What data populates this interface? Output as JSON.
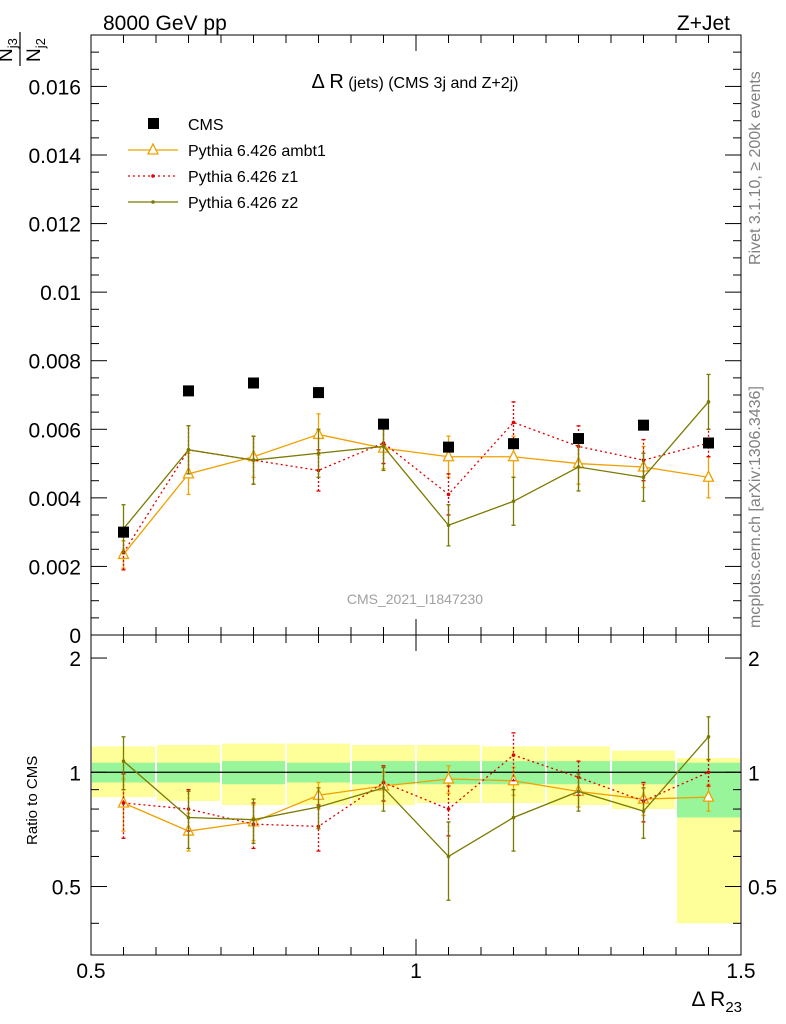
{
  "header": {
    "energy_label": "8000 GeV pp",
    "process_label": "Z+Jet"
  },
  "side_labels": {
    "rivet": "Rivet 3.1.10, ≥ 200k events",
    "mcplots": "mcplots.cern.ch [arXiv:1306.3436]"
  },
  "watermark": "CMS_2021_I1847230",
  "colors": {
    "cms": "#000000",
    "ambt1": "#f0a000",
    "z1": "#e00000",
    "z2": "#7a7a00",
    "band_inner": "#99f599",
    "band_outer": "#ffff99"
  },
  "chart_data": [
    {
      "type": "scatter",
      "title_main": "Δ R",
      "title_rest": "(jets) (CMS 3j and Z+2j)",
      "ylabel_num": "N",
      "ylabel_num_sub": "j3",
      "ylabel_den": "N",
      "ylabel_den_sub": "j2",
      "xlim": [
        0.5,
        1.5
      ],
      "ylim": [
        0,
        0.0175
      ],
      "y_ticks": [
        0,
        0.002,
        0.004,
        0.006,
        0.008,
        0.01,
        0.012,
        0.014,
        0.016
      ],
      "y_tick_labels": [
        "0",
        "0.002",
        "0.004",
        "0.006",
        "0.008",
        "0.01",
        "0.012",
        "0.014",
        "0.016"
      ],
      "bins": [
        0.5,
        0.6,
        0.7,
        0.8,
        0.9,
        1.0,
        1.1,
        1.2,
        1.3,
        1.4,
        1.5
      ],
      "x": [
        0.55,
        0.65,
        0.75,
        0.85,
        0.95,
        1.05,
        1.15,
        1.25,
        1.35,
        1.45
      ],
      "legend_position": "top-left",
      "series": [
        {
          "name": "CMS",
          "key": "cms",
          "values": [
            0.003,
            0.00712,
            0.00735,
            0.00707,
            0.00615,
            0.00548,
            0.00558,
            0.00573,
            0.00612,
            0.0056
          ],
          "errors": [
            0.0002,
            0.0002,
            0.0002,
            0.0002,
            0.0002,
            0.0002,
            0.0002,
            0.0002,
            0.0002,
            0.0002
          ]
        },
        {
          "name": "Pythia 6.426 ambt1",
          "key": "ambt1",
          "values": [
            0.00235,
            0.0047,
            0.0052,
            0.00585,
            0.00545,
            0.0052,
            0.0052,
            0.005,
            0.0049,
            0.0046
          ],
          "errors": [
            0.0004,
            0.0006,
            0.0006,
            0.0006,
            0.0006,
            0.0006,
            0.0006,
            0.0006,
            0.0006,
            0.0006
          ]
        },
        {
          "name": "Pythia 6.426 z1",
          "key": "z1",
          "values": [
            0.0024,
            0.0054,
            0.0051,
            0.0048,
            0.0056,
            0.0041,
            0.0062,
            0.0055,
            0.0051,
            0.0056
          ],
          "errors": [
            0.0005,
            0.0007,
            0.0007,
            0.0006,
            0.0006,
            0.0006,
            0.0006,
            0.0006,
            0.0006,
            0.0004
          ]
        },
        {
          "name": "Pythia 6.426 z2",
          "key": "z2",
          "values": [
            0.0031,
            0.0054,
            0.0051,
            0.0053,
            0.0055,
            0.0032,
            0.0039,
            0.0049,
            0.0046,
            0.0068
          ],
          "errors": [
            0.0007,
            0.0007,
            0.0007,
            0.0007,
            0.0007,
            0.0006,
            0.0007,
            0.0007,
            0.0007,
            0.0008
          ]
        }
      ]
    },
    {
      "type": "line",
      "ylabel": "Ratio to CMS",
      "xlabel_main": "Δ R",
      "xlabel_sub": "23",
      "xlim": [
        0.5,
        1.5
      ],
      "ylim": [
        0.33,
        2.3
      ],
      "x_ticks": [
        0.5,
        1,
        1.5
      ],
      "x_tick_labels": [
        "0.5",
        "1",
        "1.5"
      ],
      "y_ticks": [
        0.5,
        1,
        2
      ],
      "y_tick_labels": [
        "0.5",
        "1",
        "2"
      ],
      "bins": [
        0.5,
        0.6,
        0.7,
        0.8,
        0.9,
        1.0,
        1.1,
        1.2,
        1.3,
        1.4,
        1.5
      ],
      "x": [
        0.55,
        0.65,
        0.75,
        0.85,
        0.95,
        1.05,
        1.15,
        1.25,
        1.35,
        1.45
      ],
      "reference": 1,
      "band_inner": [
        [
          0.94,
          1.06
        ],
        [
          0.94,
          1.06
        ],
        [
          0.93,
          1.07
        ],
        [
          0.94,
          1.06
        ],
        [
          0.93,
          1.07
        ],
        [
          0.93,
          1.07
        ],
        [
          0.93,
          1.07
        ],
        [
          0.93,
          1.07
        ],
        [
          0.93,
          1.07
        ],
        [
          0.76,
          1.06
        ]
      ],
      "band_outer": [
        [
          0.86,
          1.17
        ],
        [
          0.84,
          1.18
        ],
        [
          0.82,
          1.19
        ],
        [
          0.82,
          1.19
        ],
        [
          0.82,
          1.18
        ],
        [
          0.83,
          1.18
        ],
        [
          0.83,
          1.17
        ],
        [
          0.82,
          1.17
        ],
        [
          0.8,
          1.14
        ],
        [
          0.4,
          1.09
        ]
      ],
      "series": [
        {
          "name": "Pythia 6.426 ambt1",
          "key": "ambt1",
          "values": [
            0.83,
            0.7,
            0.74,
            0.87,
            0.92,
            0.96,
            0.95,
            0.89,
            0.85,
            0.86
          ],
          "errors": [
            0.13,
            0.08,
            0.08,
            0.07,
            0.08,
            0.08,
            0.08,
            0.08,
            0.08,
            0.07
          ]
        },
        {
          "name": "Pythia 6.426 z1",
          "key": "z1",
          "values": [
            0.83,
            0.8,
            0.73,
            0.72,
            0.94,
            0.8,
            1.11,
            0.97,
            0.84,
            1.0
          ],
          "errors": [
            0.16,
            0.1,
            0.1,
            0.1,
            0.1,
            0.12,
            0.16,
            0.1,
            0.1,
            0.08
          ]
        },
        {
          "name": "Pythia 6.426 z2",
          "key": "z2",
          "values": [
            1.07,
            0.76,
            0.75,
            0.81,
            0.91,
            0.6,
            0.76,
            0.89,
            0.79,
            1.24
          ],
          "errors": [
            0.17,
            0.13,
            0.1,
            0.1,
            0.12,
            0.14,
            0.14,
            0.1,
            0.12,
            0.16
          ]
        }
      ]
    }
  ]
}
